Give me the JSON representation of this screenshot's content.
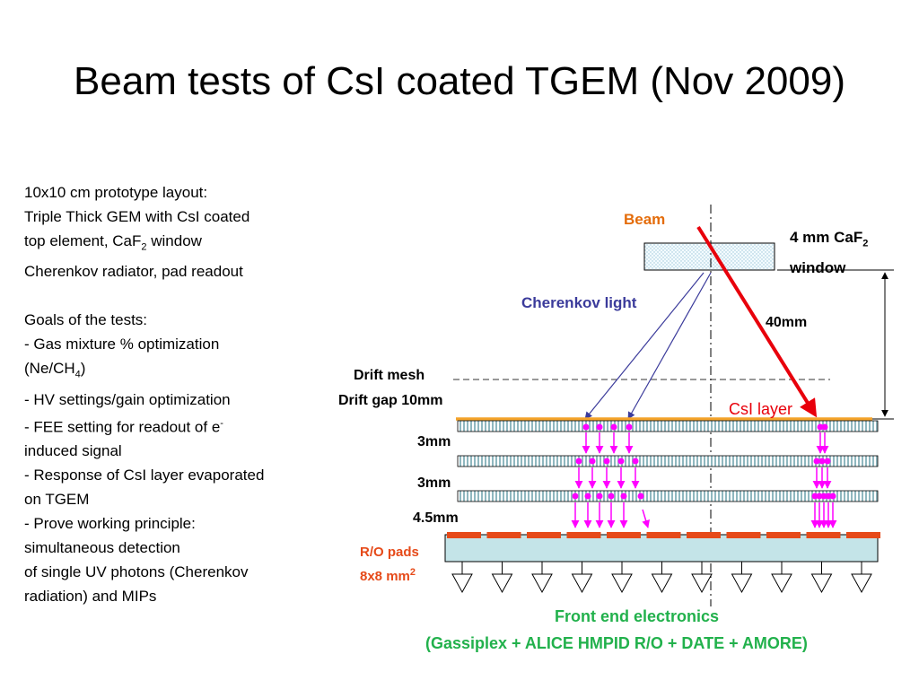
{
  "title": "Beam tests of CsI coated TGEM (Nov 2009)",
  "description": {
    "layout_heading": "10x10 cm prototype layout:",
    "layout_line1": "Triple Thick GEM with CsI coated",
    "layout_line2_pre": "top element, CaF",
    "layout_line2_sub": "2",
    "layout_line2_post": " window",
    "layout_line3": "Cherenkov radiator, pad readout",
    "goals_heading": "Goals of the tests:",
    "goal1_line1": "- Gas mixture % optimization",
    "goal1_line2_pre": "(Ne/CH",
    "goal1_line2_sub": "4",
    "goal1_line2_post": ")",
    "goal2": "- HV settings/gain optimization",
    "goal3_line1_pre": "- FEE setting for readout of e",
    "goal3_line1_sup": "-",
    "goal3_line2": "induced signal",
    "goal4_line1": "- Response of CsI layer evaporated",
    "goal4_line2": "on TGEM",
    "goal5_line1": "- Prove working principle:",
    "goal5_line2": "simultaneous detection",
    "goal5_line3": "of single UV photons (Cherenkov",
    "goal5_line4": "radiation) and MIPs"
  },
  "diagram": {
    "beam": "Beam",
    "window_line1_pre": "4 mm CaF",
    "window_line1_sub": "2",
    "window_line2": "window",
    "cherenkov": "Cherenkov light",
    "distance": "40mm",
    "drift_mesh": "Drift mesh",
    "drift_gap": "Drift gap 10mm",
    "csi_layer": "CsI layer",
    "gap1": "3mm",
    "gap2": "3mm",
    "gap3": "4.5mm",
    "pads_line1": "R/O pads",
    "pads_line2_pre": "8x8 mm",
    "pads_line2_sup": "2",
    "fee_line1": "Front end electronics",
    "fee_line2": "(Gassiplex + ALICE HMPID R/O + DATE + AMORE)"
  },
  "colors": {
    "beam": "#e8000b",
    "beam_label": "#e46c0a",
    "cherenkov": "#3b3b9b",
    "electrons": "#ff00ff",
    "csi": "#f4a32a",
    "pads": "#e64a19",
    "fee": "#22b14c"
  }
}
